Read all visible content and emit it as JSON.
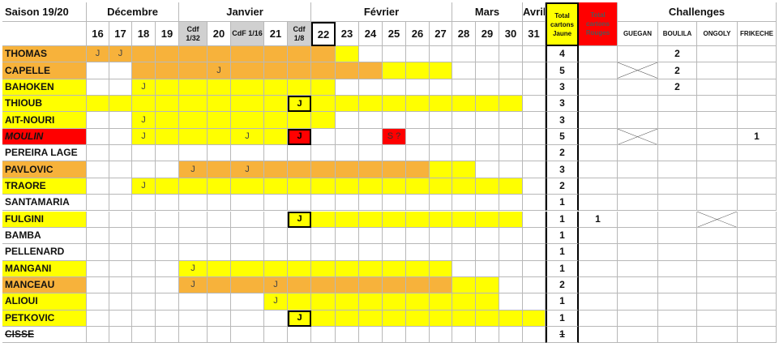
{
  "header": {
    "title": "Saison 19/20",
    "months": [
      "Décembre",
      "Janvier",
      "Février",
      "Mars",
      "Avril"
    ],
    "rounds": [
      "16",
      "17",
      "18",
      "19",
      "Cdf 1/32",
      "20",
      "CdF 1/16",
      "21",
      "Cdf 1/8",
      "22",
      "23",
      "24",
      "25",
      "26",
      "27",
      "28",
      "29",
      "30",
      "31"
    ],
    "yellow_total": "Total cartons Jaune",
    "red_total": "Total cartons Rouges",
    "challenges": "Challenges",
    "challengers": [
      "GUEGAN",
      "BOULILA",
      "ONGOLY",
      "FRIKECHE"
    ]
  },
  "rows": [
    {
      "name": "THOMAS",
      "cells": [
        "J",
        "J",
        null,
        null,
        null,
        null,
        null,
        null,
        null,
        null,
        null,
        null,
        null,
        null,
        null,
        null,
        null,
        null,
        null
      ],
      "yellow": 4,
      "red": null,
      "challenges": [
        null,
        2,
        null,
        null
      ]
    },
    {
      "name": "CAPELLE",
      "cells": [
        null,
        null,
        null,
        null,
        null,
        "J",
        null,
        null,
        null,
        null,
        null,
        null,
        null,
        null,
        null,
        null,
        null,
        null,
        null
      ],
      "yellow": 5,
      "red": null,
      "challenges": [
        null,
        2,
        null,
        null
      ]
    },
    {
      "name": "BAHOKEN",
      "cells": [
        null,
        null,
        "J",
        null,
        null,
        null,
        null,
        null,
        null,
        null,
        null,
        null,
        null,
        null,
        null,
        null,
        null,
        null,
        null
      ],
      "yellow": 3,
      "red": null,
      "challenges": [
        null,
        2,
        null,
        null
      ]
    },
    {
      "name": "THIOUB",
      "cells": [
        null,
        null,
        null,
        null,
        null,
        null,
        null,
        null,
        "J",
        null,
        null,
        null,
        null,
        null,
        null,
        null,
        null,
        null,
        null
      ],
      "yellow": 3,
      "red": null,
      "challenges": [
        null,
        null,
        null,
        null
      ]
    },
    {
      "name": "AIT-NOURI",
      "cells": [
        null,
        null,
        "J",
        null,
        null,
        null,
        null,
        null,
        null,
        null,
        null,
        null,
        null,
        null,
        null,
        null,
        null,
        null,
        null
      ],
      "yellow": 3,
      "red": null,
      "challenges": [
        null,
        null,
        null,
        null
      ]
    },
    {
      "name": "MOULIN",
      "cells": [
        null,
        null,
        "J",
        null,
        null,
        null,
        "J",
        null,
        "J",
        null,
        null,
        null,
        "S ?",
        null,
        null,
        null,
        null,
        null,
        null
      ],
      "yellow": 5,
      "red": null,
      "challenges": [
        null,
        null,
        null,
        1
      ]
    },
    {
      "name": "PEREIRA LAGE",
      "cells": [
        null,
        null,
        null,
        null,
        null,
        null,
        null,
        null,
        null,
        null,
        null,
        null,
        null,
        null,
        null,
        null,
        null,
        null,
        null
      ],
      "yellow": 2,
      "red": null,
      "challenges": [
        null,
        null,
        null,
        null
      ]
    },
    {
      "name": "PAVLOVIC",
      "cells": [
        null,
        null,
        null,
        null,
        "J",
        null,
        "J",
        null,
        null,
        null,
        null,
        null,
        null,
        null,
        null,
        null,
        null,
        null,
        null
      ],
      "yellow": 3,
      "red": null,
      "challenges": [
        null,
        null,
        null,
        null
      ]
    },
    {
      "name": "TRAORE",
      "cells": [
        null,
        null,
        "J",
        null,
        null,
        null,
        null,
        null,
        null,
        null,
        null,
        null,
        null,
        null,
        null,
        null,
        null,
        null,
        null
      ],
      "yellow": 2,
      "red": null,
      "challenges": [
        null,
        null,
        null,
        null
      ]
    },
    {
      "name": "SANTAMARIA",
      "cells": [
        null,
        null,
        null,
        null,
        null,
        null,
        null,
        null,
        null,
        null,
        null,
        null,
        null,
        null,
        null,
        null,
        null,
        null,
        null
      ],
      "yellow": 1,
      "red": null,
      "challenges": [
        null,
        null,
        null,
        null
      ]
    },
    {
      "name": "FULGINI",
      "cells": [
        null,
        null,
        null,
        null,
        null,
        null,
        null,
        null,
        "J",
        null,
        null,
        null,
        null,
        null,
        null,
        null,
        null,
        null,
        null
      ],
      "yellow": 1,
      "red": 1,
      "challenges": [
        null,
        null,
        null,
        null
      ]
    },
    {
      "name": "BAMBA",
      "cells": [
        null,
        null,
        null,
        null,
        null,
        null,
        null,
        null,
        null,
        null,
        null,
        null,
        null,
        null,
        null,
        null,
        null,
        null,
        null
      ],
      "yellow": 1,
      "red": null,
      "challenges": [
        null,
        null,
        null,
        null
      ]
    },
    {
      "name": "PELLENARD",
      "cells": [
        null,
        null,
        null,
        null,
        null,
        null,
        null,
        null,
        null,
        null,
        null,
        null,
        null,
        null,
        null,
        null,
        null,
        null,
        null
      ],
      "yellow": 1,
      "red": null,
      "challenges": [
        null,
        null,
        null,
        null
      ]
    },
    {
      "name": "MANGANI",
      "cells": [
        null,
        null,
        null,
        null,
        "J",
        null,
        null,
        null,
        null,
        null,
        null,
        null,
        null,
        null,
        null,
        null,
        null,
        null,
        null
      ],
      "yellow": 1,
      "red": null,
      "challenges": [
        null,
        null,
        null,
        null
      ]
    },
    {
      "name": "MANCEAU",
      "cells": [
        null,
        null,
        null,
        null,
        "J",
        null,
        null,
        "J",
        null,
        null,
        null,
        null,
        null,
        null,
        null,
        null,
        null,
        null,
        null
      ],
      "yellow": 2,
      "red": null,
      "challenges": [
        null,
        null,
        null,
        null
      ]
    },
    {
      "name": "ALIOUI",
      "cells": [
        null,
        null,
        null,
        null,
        null,
        null,
        null,
        "J",
        null,
        null,
        null,
        null,
        null,
        null,
        null,
        null,
        null,
        null,
        null
      ],
      "yellow": 1,
      "red": null,
      "challenges": [
        null,
        null,
        null,
        null
      ]
    },
    {
      "name": "PETKOVIC",
      "cells": [
        null,
        null,
        null,
        null,
        null,
        null,
        null,
        null,
        "J",
        null,
        null,
        null,
        null,
        null,
        null,
        null,
        null,
        null,
        null
      ],
      "yellow": 1,
      "red": null,
      "challenges": [
        null,
        null,
        null,
        null
      ]
    },
    {
      "name": "CISSE",
      "cells": [
        null,
        null,
        null,
        null,
        null,
        null,
        null,
        null,
        null,
        null,
        null,
        null,
        null,
        null,
        null,
        null,
        null,
        null,
        null
      ],
      "yellow": 1,
      "red": null,
      "challenges": [
        null,
        null,
        null,
        null
      ]
    }
  ]
}
